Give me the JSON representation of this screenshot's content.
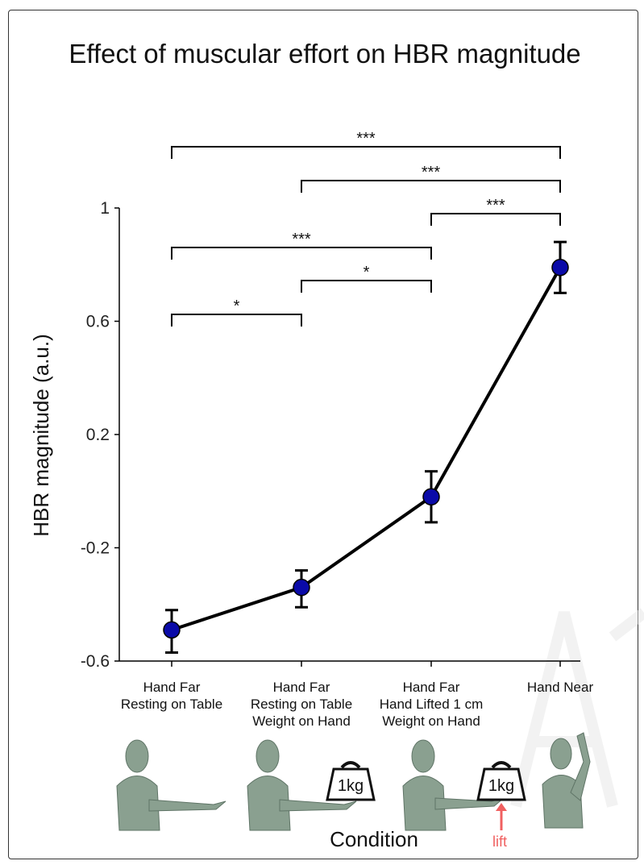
{
  "chart_data": {
    "type": "line",
    "title": "Effect of muscular effort on HBR magnitude",
    "xlabel": "Condition",
    "ylabel": "HBR magnitude (a.u.)",
    "ylim": [
      -0.6,
      1.0
    ],
    "yticks": [
      "1",
      "0.6",
      "0.2",
      "-0.2",
      "-0.6"
    ],
    "categories": [
      [
        "Hand Far",
        "Resting on Table"
      ],
      [
        "Hand Far",
        "Resting on Table",
        "Weight on Hand"
      ],
      [
        "Hand Far",
        "Hand Lifted 1 cm",
        "Weight on Hand"
      ],
      [
        "Hand Near"
      ]
    ],
    "series": [
      {
        "values": [
          -0.49,
          -0.34,
          -0.02,
          0.79
        ],
        "err_low": [
          -0.57,
          -0.41,
          -0.11,
          0.7
        ],
        "err_high": [
          -0.42,
          -0.28,
          0.07,
          0.88
        ]
      }
    ],
    "significance": [
      {
        "from": 0,
        "to": 3,
        "label": "***"
      },
      {
        "from": 1,
        "to": 3,
        "label": "***"
      },
      {
        "from": 2,
        "to": 3,
        "label": "***"
      },
      {
        "from": 0,
        "to": 2,
        "label": "***"
      },
      {
        "from": 1,
        "to": 2,
        "label": "*"
      },
      {
        "from": 0,
        "to": 1,
        "label": "*"
      }
    ],
    "illustrations": {
      "weight_label": "1kg",
      "lift_label": "lift"
    },
    "colors": {
      "marker_fill": "#0a0aa8",
      "line": "#000000",
      "lift": "#f06060",
      "figure_skin": "#8aa090"
    },
    "grid": false
  }
}
